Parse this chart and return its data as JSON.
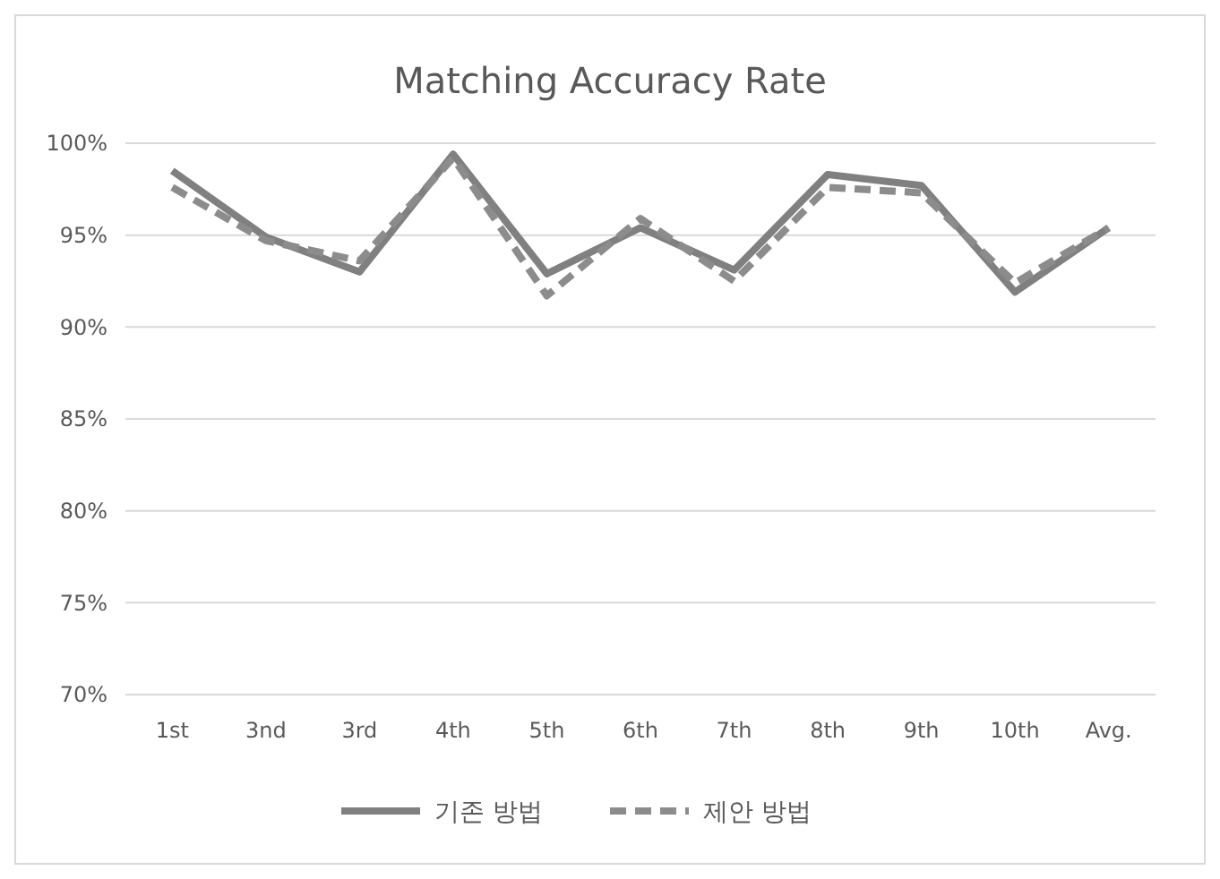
{
  "chart_data": {
    "type": "line",
    "title": "Matching Accuracy Rate",
    "categories": [
      "1st",
      "3nd",
      "3rd",
      "4th",
      "5th",
      "6th",
      "7th",
      "8th",
      "9th",
      "10th",
      "Avg."
    ],
    "series": [
      {
        "name": "기존 방법",
        "color": "#808080",
        "line_style": "solid",
        "values": [
          98.5,
          94.9,
          93.0,
          99.4,
          92.9,
          95.4,
          93.1,
          98.3,
          97.7,
          91.9,
          95.4
        ]
      },
      {
        "name": "제안 방법",
        "color": "#8c8c8c",
        "line_style": "dashed",
        "values": [
          97.6,
          94.7,
          93.6,
          99.2,
          91.7,
          95.9,
          92.5,
          97.6,
          97.3,
          92.4,
          95.4
        ]
      }
    ],
    "ylim": [
      70,
      100
    ],
    "yticks": [
      {
        "value": 70,
        "label": "70%"
      },
      {
        "value": 75,
        "label": "75%"
      },
      {
        "value": 80,
        "label": "80%"
      },
      {
        "value": 85,
        "label": "85%"
      },
      {
        "value": 90,
        "label": "90%"
      },
      {
        "value": 95,
        "label": "95%"
      },
      {
        "value": 100,
        "label": "100%"
      }
    ],
    "grid": "y",
    "legend": "bottom",
    "marker": "none"
  }
}
